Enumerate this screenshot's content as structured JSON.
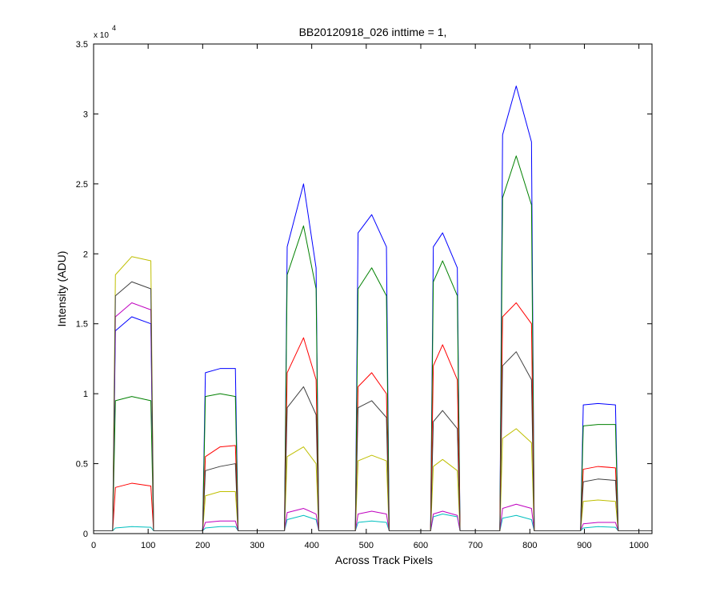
{
  "chart_data": {
    "type": "line",
    "title": "BB20120918_026 inttime = 1,",
    "x_label": "Across Track Pixels",
    "y_label": "Intensity (ADU)",
    "y_scale_label": {
      "base": "x 10",
      "exponent": "4"
    },
    "x": [
      0,
      35,
      40,
      70,
      105,
      110,
      200,
      205,
      232,
      260,
      265,
      350,
      355,
      385,
      408,
      413,
      480,
      485,
      510,
      537,
      542,
      618,
      623,
      640,
      667,
      672,
      745,
      750,
      775,
      803,
      808,
      893,
      898,
      925,
      957,
      962,
      1024
    ],
    "series": [
      {
        "color": "#0000ff",
        "values": [
          200,
          200,
          14500,
          15500,
          15000,
          200,
          200,
          11500,
          11800,
          11800,
          200,
          200,
          20500,
          25000,
          19000,
          200,
          200,
          21500,
          22800,
          20500,
          200,
          200,
          20500,
          21500,
          19000,
          200,
          200,
          28500,
          32000,
          28000,
          200,
          200,
          9200,
          9300,
          9200,
          200,
          200
        ]
      },
      {
        "color": "#008000",
        "values": [
          200,
          200,
          9500,
          9800,
          9500,
          200,
          200,
          9800,
          10000,
          9800,
          200,
          200,
          18500,
          22000,
          17500,
          200,
          200,
          17500,
          19000,
          17000,
          200,
          200,
          18000,
          19500,
          17000,
          200,
          200,
          24000,
          27000,
          23500,
          200,
          200,
          7700,
          7800,
          7800,
          200,
          200
        ]
      },
      {
        "color": "#ff0000",
        "values": [
          200,
          200,
          3300,
          3600,
          3400,
          200,
          200,
          5500,
          6200,
          6300,
          200,
          200,
          11500,
          14000,
          11000,
          200,
          200,
          10500,
          11500,
          10000,
          200,
          200,
          12000,
          13500,
          11000,
          200,
          200,
          15500,
          16500,
          15000,
          200,
          200,
          4600,
          4800,
          4700,
          200,
          200
        ]
      },
      {
        "color": "#00bfbf",
        "values": [
          200,
          200,
          400,
          500,
          450,
          200,
          200,
          400,
          500,
          500,
          200,
          200,
          1000,
          1300,
          1000,
          200,
          200,
          800,
          900,
          800,
          200,
          200,
          1200,
          1400,
          1200,
          200,
          200,
          1100,
          1300,
          1000,
          200,
          200,
          400,
          500,
          450,
          200,
          200
        ]
      },
      {
        "color": "#bf00bf",
        "values": [
          200,
          200,
          15500,
          16500,
          16000,
          200,
          200,
          800,
          900,
          900,
          200,
          200,
          1500,
          1800,
          1400,
          200,
          200,
          1400,
          1600,
          1400,
          200,
          200,
          1400,
          1600,
          1300,
          200,
          200,
          1800,
          2100,
          1800,
          200,
          200,
          700,
          800,
          800,
          200,
          200
        ]
      },
      {
        "color": "#bfbf00",
        "values": [
          200,
          200,
          18500,
          19800,
          19500,
          200,
          200,
          2700,
          3000,
          3000,
          200,
          200,
          5500,
          6200,
          5000,
          200,
          200,
          5200,
          5600,
          5200,
          200,
          200,
          4800,
          5300,
          4500,
          200,
          200,
          6800,
          7500,
          6500,
          200,
          200,
          2300,
          2400,
          2300,
          200,
          200
        ]
      },
      {
        "color": "#404040",
        "values": [
          200,
          200,
          17000,
          18000,
          17500,
          200,
          200,
          4500,
          4800,
          5000,
          200,
          200,
          9000,
          10500,
          8500,
          200,
          200,
          9000,
          9500,
          8300,
          200,
          200,
          8000,
          8800,
          7500,
          200,
          200,
          12000,
          13000,
          11000,
          200,
          200,
          3700,
          3900,
          3800,
          200,
          200
        ]
      }
    ],
    "xlim": [
      0,
      1024
    ],
    "xticks": [
      0,
      100,
      200,
      300,
      400,
      500,
      600,
      700,
      800,
      900,
      1000
    ],
    "ylim": [
      0,
      35000
    ],
    "yticks": [
      0,
      {
        "value": 5000,
        "label": "0.5"
      },
      {
        "value": 10000,
        "label": "1"
      },
      {
        "value": 15000,
        "label": "1.5"
      },
      {
        "value": 20000,
        "label": "2"
      },
      {
        "value": 25000,
        "label": "2.5"
      },
      {
        "value": 30000,
        "label": "3"
      },
      {
        "value": 35000,
        "label": "3.5"
      }
    ],
    "grid": false
  }
}
